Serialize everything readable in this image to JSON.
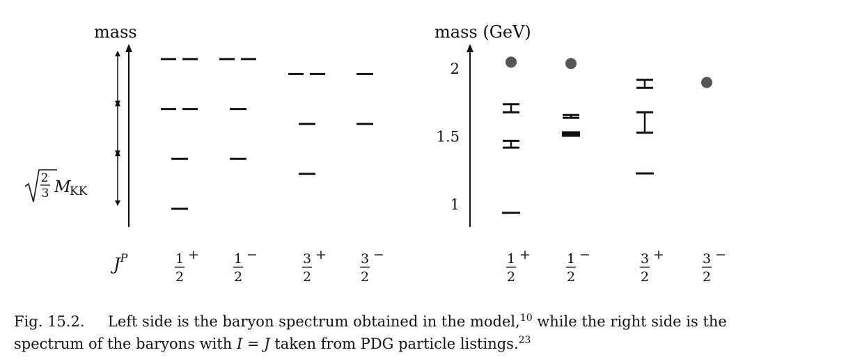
{
  "chart_data": [
    {
      "type": "level-diagram",
      "ylabel": "mass",
      "scale_label": "√(2/3) M_KK",
      "scale_step": "√(2/3) M_KK",
      "xlabel": "J^P",
      "categories": [
        "1/2+",
        "1/2−",
        "3/2+",
        "3/2−"
      ],
      "levels": [
        {
          "category": "1/2+",
          "steps": [
            0,
            1,
            2,
            3
          ],
          "multiplicity": [
            1,
            1,
            2,
            2
          ]
        },
        {
          "category": "1/2−",
          "steps": [
            1,
            2,
            3
          ],
          "multiplicity": [
            1,
            1,
            2
          ]
        },
        {
          "category": "3/2+",
          "steps": [
            0.7,
            1.7,
            2.7
          ],
          "multiplicity": [
            1,
            1,
            2
          ]
        },
        {
          "category": "3/2−",
          "steps": [
            1.7,
            2.7
          ],
          "multiplicity": [
            1,
            1
          ]
        }
      ]
    },
    {
      "type": "level-diagram",
      "ylabel": "mass (GeV)",
      "xlabel": "",
      "yticks": [
        "1",
        "1.5",
        "2"
      ],
      "ylim": [
        0.85,
        2.15
      ],
      "categories": [
        "1/2+",
        "1/2−",
        "3/2+",
        "3/2−"
      ],
      "states": [
        {
          "category": "1/2+",
          "mass": 0.94,
          "kind": "line"
        },
        {
          "category": "1/2+",
          "mass": 1.44,
          "kind": "range",
          "low": 1.42,
          "high": 1.47
        },
        {
          "category": "1/2+",
          "mass": 1.71,
          "kind": "range",
          "low": 1.68,
          "high": 1.74
        },
        {
          "category": "1/2+",
          "mass": 2.05,
          "kind": "dot"
        },
        {
          "category": "1/2−",
          "mass": 1.52,
          "kind": "thick"
        },
        {
          "category": "1/2−",
          "mass": 1.65,
          "kind": "range",
          "low": 1.64,
          "high": 1.66
        },
        {
          "category": "1/2−",
          "mass": 2.04,
          "kind": "dot"
        },
        {
          "category": "3/2+",
          "mass": 1.23,
          "kind": "line"
        },
        {
          "category": "3/2+",
          "mass": 1.62,
          "kind": "range",
          "low": 1.53,
          "high": 1.68
        },
        {
          "category": "3/2+",
          "mass": 1.89,
          "kind": "range",
          "low": 1.86,
          "high": 1.92
        },
        {
          "category": "3/2+",
          "mass": 1.9,
          "kind": "dot"
        }
      ],
      "notes": ""
    }
  ],
  "tick_labels": {
    "half": {
      "num": "1",
      "den": "2"
    },
    "three_half": {
      "num": "3",
      "den": "2"
    },
    "plus": "+",
    "minus": "−",
    "jp": "J",
    "jp_sup": "P",
    "scale_num": "2",
    "scale_den": "3",
    "scale_m": "M",
    "scale_sub": "KK"
  },
  "caption": {
    "fig": "Fig. 15.2.",
    "text1": "Left side is the baryon spectrum obtained in the model,",
    "ref1": "10",
    "text2": " while the right side is the",
    "text3": "spectrum of the baryons with ",
    "I": "I",
    "eq": " = ",
    "J": "J",
    "text4": " taken from PDG particle listings.",
    "ref2": "23"
  }
}
